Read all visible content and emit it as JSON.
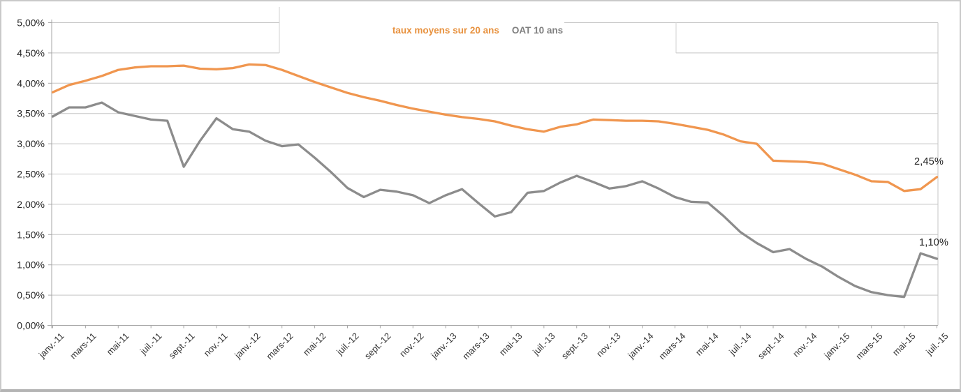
{
  "chart_data": {
    "type": "line",
    "title": "",
    "grid": true,
    "legend_position": "top-center",
    "y_axis": {
      "min": 0,
      "max": 5,
      "step": 0.5,
      "tick_labels": [
        "5,00%",
        "4,50%",
        "4,00%",
        "3,50%",
        "3,00%",
        "2,50%",
        "2,00%",
        "1,50%",
        "1,00%",
        "0,50%",
        "0,00%"
      ]
    },
    "x_axis": {
      "visible_tick_labels": [
        "janv.-11",
        "mars-11",
        "mai-11",
        "juil.-11",
        "sept.-11",
        "nov.-11",
        "janv.-12",
        "mars-12",
        "mai-12",
        "juil.-12",
        "sept.-12",
        "nov.-12",
        "janv.-13",
        "mars-13",
        "mai-13",
        "juil.-13",
        "sept.-13",
        "nov.-13",
        "janv.-14",
        "mars-14",
        "mai-14",
        "juil.-14",
        "sept.-14",
        "nov.-14",
        "janv.-15",
        "mars-15",
        "mai-15",
        "juil.-15"
      ]
    },
    "categories": [
      "janv.-11",
      "févr.-11",
      "mars-11",
      "avr.-11",
      "mai-11",
      "juin-11",
      "juil.-11",
      "août-11",
      "sept.-11",
      "oct.-11",
      "nov.-11",
      "déc.-11",
      "janv.-12",
      "févr.-12",
      "mars-12",
      "avr.-12",
      "mai-12",
      "juin-12",
      "juil.-12",
      "août-12",
      "sept.-12",
      "oct.-12",
      "nov.-12",
      "déc.-12",
      "janv.-13",
      "févr.-13",
      "mars-13",
      "avr.-13",
      "mai-13",
      "juin-13",
      "juil.-13",
      "août-13",
      "sept.-13",
      "oct.-13",
      "nov.-13",
      "déc.-13",
      "janv.-14",
      "févr.-14",
      "mars-14",
      "avr.-14",
      "mai-14",
      "juin-14",
      "juil.-14",
      "août-14",
      "sept.-14",
      "oct.-14",
      "nov.-14",
      "déc.-14",
      "janv.-15",
      "févr.-15",
      "mars-15",
      "avr.-15",
      "mai-15",
      "juin-15",
      "juil.-15"
    ],
    "series": [
      {
        "name": "taux moyens sur 20 ans",
        "color": "#f0964f",
        "end_label": "2,45%",
        "values": [
          3.85,
          3.97,
          4.04,
          4.12,
          4.22,
          4.26,
          4.28,
          4.28,
          4.29,
          4.24,
          4.23,
          4.25,
          4.31,
          4.3,
          4.22,
          4.12,
          4.02,
          3.93,
          3.84,
          3.77,
          3.71,
          3.64,
          3.58,
          3.53,
          3.48,
          3.44,
          3.41,
          3.37,
          3.3,
          3.24,
          3.2,
          3.28,
          3.32,
          3.4,
          3.39,
          3.38,
          3.38,
          3.37,
          3.33,
          3.28,
          3.23,
          3.15,
          3.04,
          3.0,
          2.72,
          2.71,
          2.7,
          2.67,
          2.58,
          2.49,
          2.38,
          2.37,
          2.22,
          2.25,
          2.45
        ]
      },
      {
        "name": "OAT 10 ans",
        "color": "#8c8c8c",
        "end_label": "1,10%",
        "values": [
          3.45,
          3.6,
          3.6,
          3.68,
          3.52,
          3.46,
          3.4,
          3.38,
          2.62,
          3.05,
          3.42,
          3.24,
          3.2,
          3.05,
          2.96,
          2.99,
          2.77,
          2.53,
          2.27,
          2.12,
          2.24,
          2.21,
          2.15,
          2.02,
          2.15,
          2.25,
          2.02,
          1.8,
          1.87,
          2.19,
          2.22,
          2.36,
          2.47,
          2.37,
          2.26,
          2.3,
          2.38,
          2.26,
          2.12,
          2.04,
          2.03,
          1.8,
          1.54,
          1.36,
          1.21,
          1.26,
          1.1,
          0.97,
          0.8,
          0.65,
          0.55,
          0.5,
          0.47,
          1.19,
          1.1
        ]
      }
    ],
    "colors": {
      "gridline": "#c5c5c5",
      "axis": "#a6a6a6",
      "labels": "#262626"
    }
  }
}
